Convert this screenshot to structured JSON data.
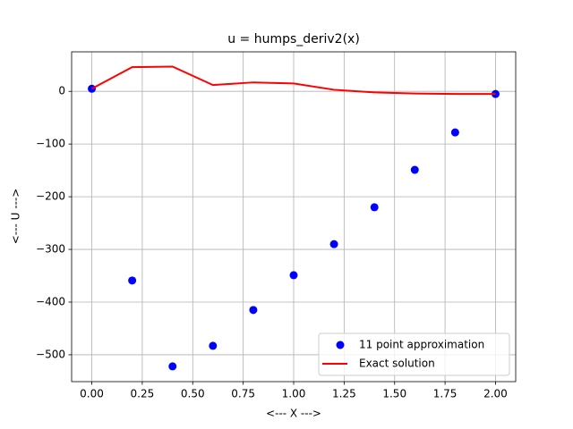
{
  "chart_data": {
    "type": "line",
    "title": "u = humps_deriv2(x)",
    "xlabel": "<--- X --->",
    "ylabel": "<--- U --->",
    "x": [
      0,
      0.2,
      0.4,
      0.6,
      0.8,
      1.0,
      1.2,
      1.4,
      1.6,
      1.8,
      2.0
    ],
    "series": [
      {
        "name": "11 point approximation",
        "color": "#0000ff",
        "mode": "markers",
        "values": [
          5,
          -359,
          -522,
          -483,
          -415,
          -349,
          -290,
          -220,
          -149,
          -78,
          -5
        ]
      },
      {
        "name": "Exact solution",
        "color": "#ff0000",
        "mode": "line",
        "values": [
          5,
          46,
          47,
          12,
          17,
          15,
          3,
          -2,
          -4,
          -5,
          -5
        ]
      }
    ],
    "xlim": [
      -0.1,
      2.1
    ],
    "ylim": [
      -551,
      75
    ],
    "xticks": [
      {
        "value": 0,
        "label": "0.00"
      },
      {
        "value": 0.25,
        "label": "0.25"
      },
      {
        "value": 0.5,
        "label": "0.50"
      },
      {
        "value": 0.75,
        "label": "0.75"
      },
      {
        "value": 1.0,
        "label": "1.00"
      },
      {
        "value": 1.25,
        "label": "1.25"
      },
      {
        "value": 1.5,
        "label": "1.50"
      },
      {
        "value": 1.75,
        "label": "1.75"
      },
      {
        "value": 2.0,
        "label": "2.00"
      }
    ],
    "yticks": [
      {
        "value": -500,
        "label": "−500"
      },
      {
        "value": -400,
        "label": "−400"
      },
      {
        "value": -300,
        "label": "−300"
      },
      {
        "value": -200,
        "label": "−200"
      },
      {
        "value": -100,
        "label": "−100"
      },
      0
    ],
    "grid": true,
    "legend": "lower right"
  }
}
